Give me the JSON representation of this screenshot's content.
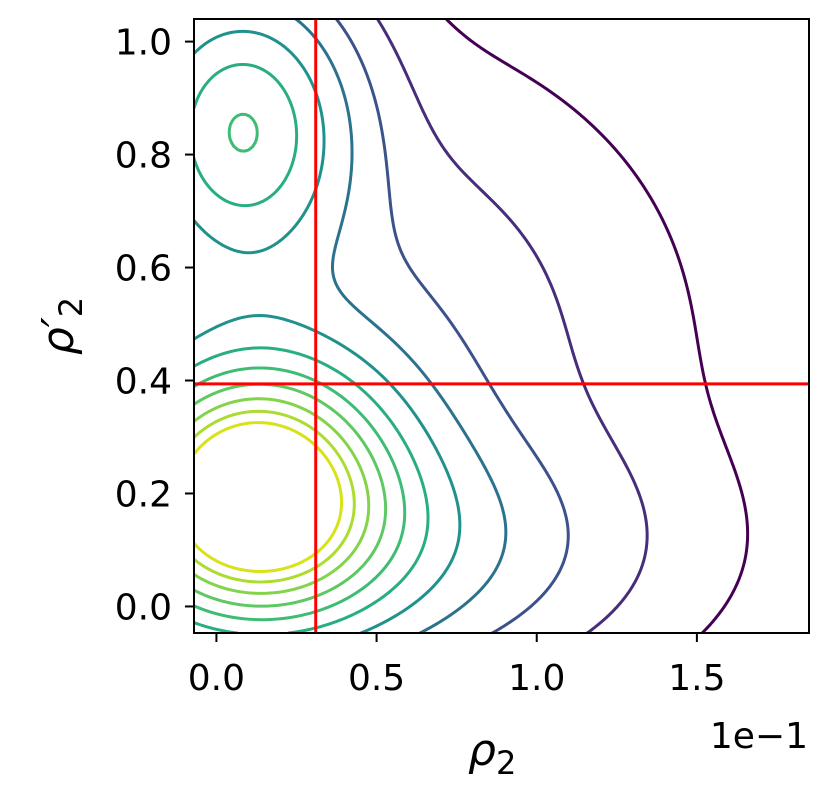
{
  "chart_data": {
    "type": "contour",
    "xlabel": "ρ2",
    "ylabel": "ρ'2",
    "x_offset_text": "1e−1",
    "xlim": [
      -0.07,
      1.85
    ],
    "ylim": [
      -0.047,
      1.04
    ],
    "x_ticks": [
      0.0,
      0.5,
      1.0,
      1.5
    ],
    "x_tick_labels": [
      "0.0",
      "0.5",
      "1.0",
      "1.5"
    ],
    "y_ticks": [
      0.0,
      0.2,
      0.4,
      0.6,
      0.8,
      1.0
    ],
    "y_tick_labels": [
      "0.0",
      "0.2",
      "0.4",
      "0.6",
      "0.8",
      "1.0"
    ],
    "reference_lines": {
      "vertical_x": 0.31,
      "horizontal_y": 0.394,
      "color": "#ff0000"
    },
    "colormap": "viridis",
    "density_components": [
      {
        "center": [
          0.12,
          0.21
        ],
        "sigma": [
          0.28,
          0.15
        ],
        "weight": 1.0
      },
      {
        "center": [
          0.08,
          0.85
        ],
        "sigma": [
          0.22,
          0.16
        ],
        "weight": 0.48
      },
      {
        "center": [
          0.25,
          0.1
        ],
        "sigma": [
          0.55,
          0.14
        ],
        "weight": 0.28
      },
      {
        "center": [
          0.35,
          0.45
        ],
        "sigma": [
          0.55,
          0.28
        ],
        "weight": 0.12
      }
    ],
    "levels": [
      0.014,
      0.05,
      0.11,
      0.19,
      0.29,
      0.4,
      0.51,
      0.62,
      0.73,
      0.83,
      0.92
    ],
    "level_colors": [
      "#440154",
      "#472d7b",
      "#3b528b",
      "#2c728e",
      "#21918c",
      "#28ae80",
      "#3fbc73",
      "#5ec962",
      "#84d44b",
      "#addc30",
      "#d8e219"
    ],
    "grid": false,
    "legend": "none"
  }
}
